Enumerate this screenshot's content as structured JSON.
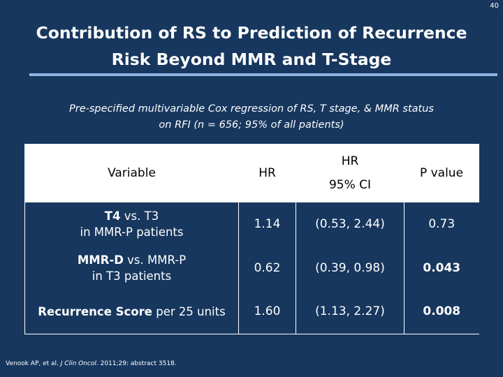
{
  "slide": {
    "page_number": "40",
    "title_line1": "Contribution of RS to Prediction of Recurrence",
    "title_line2": "Risk Beyond MMR and T-Stage",
    "subtitle_line1": "Pre-specified multivariable Cox regression of RS, T stage, & MMR status",
    "subtitle_line2": "on RFI  (n = 656; 95% of all patients)"
  },
  "table": {
    "headers": {
      "variable": "Variable",
      "hr": "HR",
      "ci_line1": "HR",
      "ci_line2": "95% CI",
      "p": "P value"
    },
    "rows": [
      {
        "var_bold": "T4",
        "var_rest": " vs. T3",
        "var_line2": "in MMR-P patients",
        "hr": "1.14",
        "ci": "(0.53, 2.44)",
        "p": "0.73",
        "p_bold": false
      },
      {
        "var_bold": "MMR-D",
        "var_rest": " vs. MMR-P",
        "var_line2": "in T3 patients",
        "hr": "0.62",
        "ci": "(0.39, 0.98)",
        "p": "0.043",
        "p_bold": true
      },
      {
        "var_bold": "Recurrence Score",
        "var_rest": " per 25 units",
        "var_line2": "",
        "hr": "1.60",
        "ci": "(1.13, 2.27)",
        "p": "0.008",
        "p_bold": true
      }
    ]
  },
  "citation": {
    "authors": "Venook AP, et al. ",
    "journal": "J Clin Oncol",
    "details": ". 2011;29: abstract 3518."
  },
  "colors": {
    "background": "#17375e",
    "title_rule": "#8eb4e3",
    "header_fill": "#ffffff"
  }
}
